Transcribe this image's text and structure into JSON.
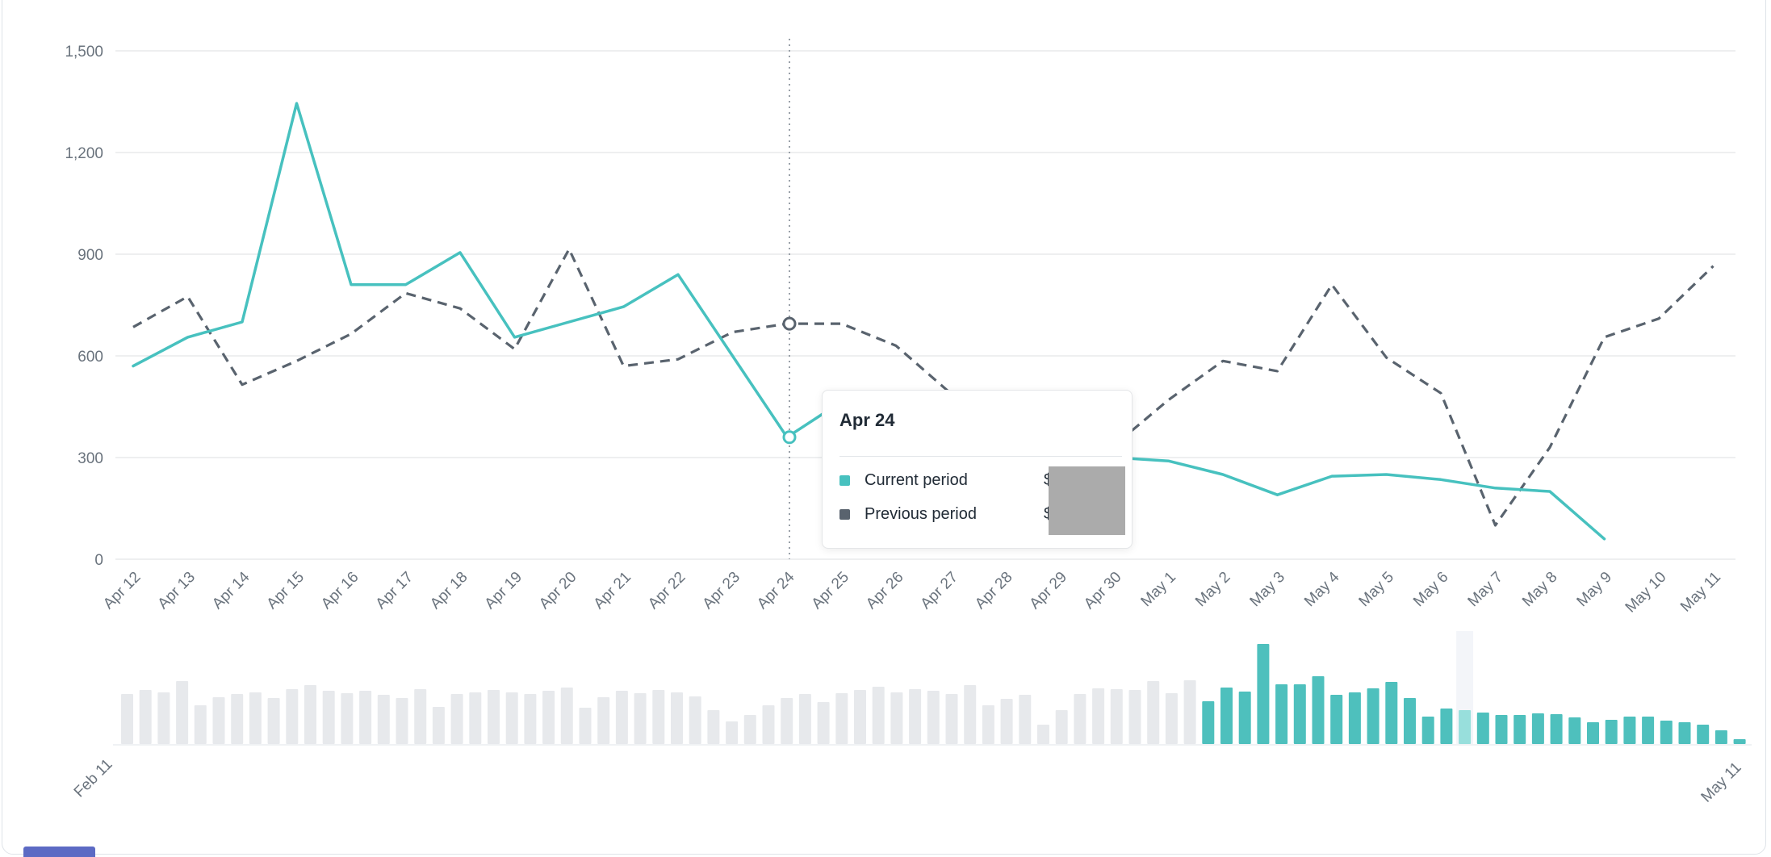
{
  "tooltip": {
    "date": "Apr 24",
    "rows": [
      {
        "label": "Current period",
        "value_prefix": "$",
        "swatch_color": "#47c1bf"
      },
      {
        "label": "Previous period",
        "value_prefix": "$",
        "swatch_color": "#59636e"
      }
    ],
    "values_redacted": true
  },
  "colors": {
    "current": "#47c1bf",
    "previous": "#59636e",
    "grid": "#e8eaec",
    "axis_text": "#6a737d",
    "minibar_gray": "#e7e9ec",
    "minibar_selected": "#4ec0bd",
    "minibar_highlight": "#98dfdc",
    "highlight_column": "#f3f5f9",
    "crosshair": "#99a0a8",
    "redaction_gray": "#ababab",
    "partial_element_blue": "#5c6ac4"
  },
  "chart_data": {
    "type": "line",
    "title": "",
    "xlabel": "",
    "ylabel": "",
    "grid": "horizontal",
    "ylim": [
      0,
      1500
    ],
    "y_ticks": [
      "0",
      "300",
      "600",
      "900",
      "1,200",
      "1,500"
    ],
    "y_tick_values": [
      0,
      300,
      600,
      900,
      1200,
      1500
    ],
    "x": [
      "Apr 12",
      "Apr 13",
      "Apr 14",
      "Apr 15",
      "Apr 16",
      "Apr 17",
      "Apr 18",
      "Apr 19",
      "Apr 20",
      "Apr 21",
      "Apr 22",
      "Apr 23",
      "Apr 24",
      "Apr 25",
      "Apr 26",
      "Apr 27",
      "Apr 28",
      "Apr 29",
      "Apr 30",
      "May 1",
      "May 2",
      "May 3",
      "May 4",
      "May 5",
      "May 6",
      "May 7",
      "May 8",
      "May 9",
      "May 10",
      "May 11"
    ],
    "series": [
      {
        "name": "Current period",
        "style": "solid",
        "color": "#47c1bf",
        "values": [
          570,
          655,
          700,
          1345,
          810,
          810,
          905,
          655,
          700,
          745,
          840,
          600,
          360,
          465,
          440,
          410,
          370,
          330,
          300,
          290,
          250,
          190,
          245,
          250,
          235,
          210,
          200,
          60,
          null,
          null
        ]
      },
      {
        "name": "Previous period",
        "style": "dashed",
        "color": "#59636e",
        "values": [
          685,
          775,
          515,
          585,
          665,
          785,
          740,
          620,
          915,
          570,
          590,
          670,
          695,
          695,
          630,
          490,
          400,
          360,
          335,
          470,
          585,
          555,
          810,
          595,
          490,
          100,
          330,
          655,
          710,
          865
        ]
      }
    ],
    "hover": {
      "x_label": "Apr 24",
      "index": 12,
      "current_value": 360,
      "previous_value": 695
    },
    "minimap": {
      "start_label": "Feb 11",
      "end_label": "May 11",
      "gray_bars": [
        62,
        67,
        64,
        78,
        48,
        58,
        62,
        64,
        57,
        68,
        73,
        66,
        63,
        66,
        61,
        57,
        68,
        46,
        62,
        64,
        67,
        64,
        62,
        66,
        70,
        45,
        58,
        66,
        63,
        67,
        64,
        59,
        42,
        28,
        36,
        48,
        57,
        62,
        52,
        63,
        67,
        71,
        64,
        68,
        66,
        62,
        73,
        48,
        56,
        61,
        24,
        42,
        62,
        69,
        68,
        67,
        78,
        63,
        79
      ],
      "selected_bars": [
        53,
        70,
        65,
        124,
        74,
        74,
        84,
        61,
        64,
        69,
        77,
        57,
        34,
        44,
        42,
        39,
        36,
        36,
        38,
        37,
        33,
        27,
        30,
        34,
        34,
        29,
        27,
        24,
        17,
        6
      ],
      "highlight_index_in_selected": 14
    }
  }
}
